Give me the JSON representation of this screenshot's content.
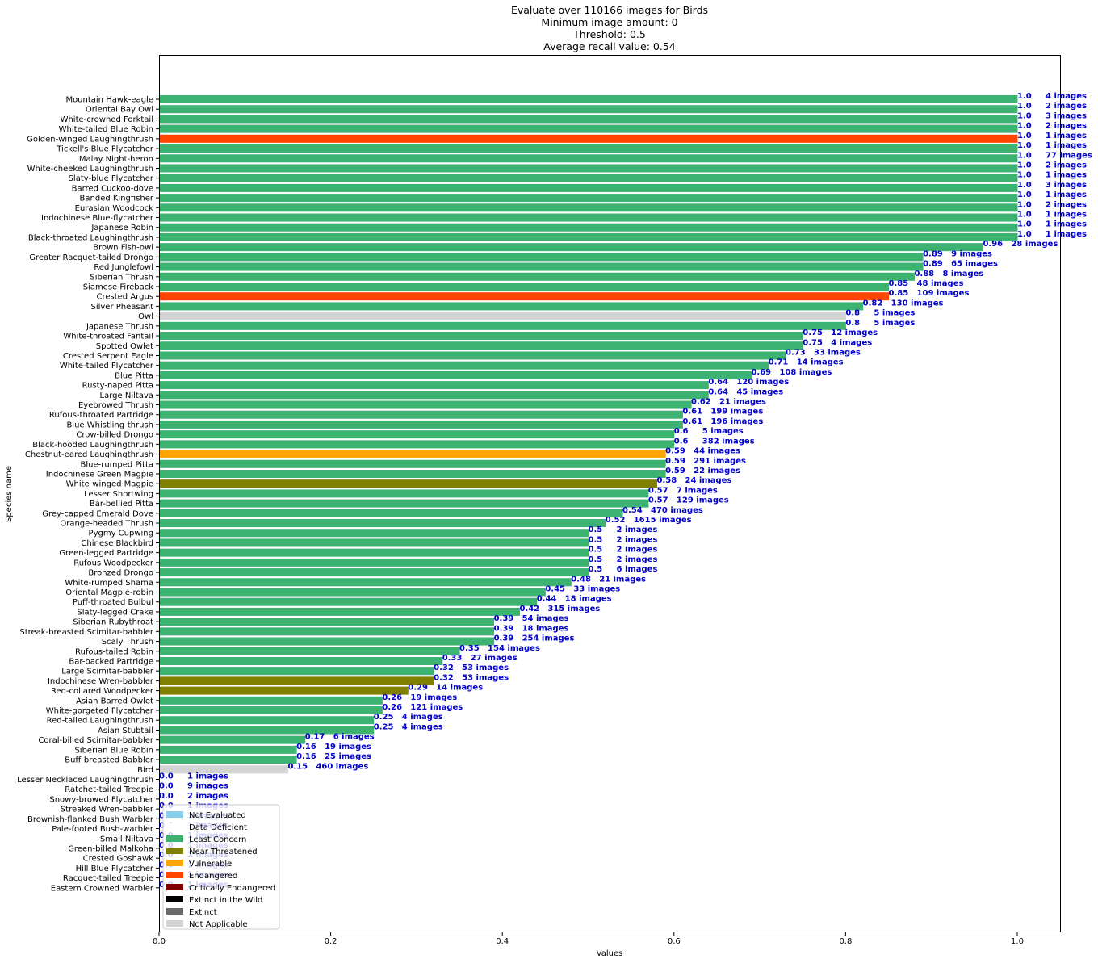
{
  "chart_data": {
    "type": "bar",
    "orientation": "horizontal",
    "title_lines": [
      "Evaluate over 110166 images for Birds",
      "Minimum image amount: 0",
      "Threshold:  0.5",
      "Average recall value: 0.54"
    ],
    "xlabel": "Values",
    "ylabel": "Species name",
    "xlim": [
      0,
      1.05
    ],
    "xticks": [
      "0.0",
      "0.2",
      "0.4",
      "0.6",
      "0.8",
      "1.0"
    ],
    "grid": false,
    "legend_position": "lower-left",
    "status_colors": {
      "Not Evaluated": "#87ceeb",
      "Data Deficient": "#ffffff",
      "Least Concern": "#3cb371",
      "Near Threatened": "#808000",
      "Vulnerable": "#ffa500",
      "Endangered": "#ff4500",
      "Critically Endangered": "#800000",
      "Extinct in the Wild": "#000000",
      "Extinct": "#696969",
      "Not Applicable": "#d3d3d3"
    },
    "legend": [
      "Not Evaluated",
      "Data Deficient",
      "Least Concern",
      "Near Threatened",
      "Vulnerable",
      "Endangered",
      "Critically Endangered",
      "Extinct in the Wild",
      "Extinct",
      "Not Applicable"
    ],
    "bars": [
      {
        "name": "Mountain Hawk-eagle",
        "value": 1.0,
        "label": "1.0",
        "images": "4 images",
        "status": "Least Concern"
      },
      {
        "name": "Oriental Bay Owl",
        "value": 1.0,
        "label": "1.0",
        "images": "2 images",
        "status": "Least Concern"
      },
      {
        "name": "White-crowned Forktail",
        "value": 1.0,
        "label": "1.0",
        "images": "3 images",
        "status": "Least Concern"
      },
      {
        "name": "White-tailed Blue Robin",
        "value": 1.0,
        "label": "1.0",
        "images": "2 images",
        "status": "Least Concern"
      },
      {
        "name": "Golden-winged Laughingthrush",
        "value": 1.0,
        "label": "1.0",
        "images": "1 images",
        "status": "Endangered"
      },
      {
        "name": "Tickell's Blue Flycatcher",
        "value": 1.0,
        "label": "1.0",
        "images": "1 images",
        "status": "Least Concern"
      },
      {
        "name": "Malay Night-heron",
        "value": 1.0,
        "label": "1.0",
        "images": "77 images",
        "status": "Least Concern"
      },
      {
        "name": "White-cheeked Laughingthrush",
        "value": 1.0,
        "label": "1.0",
        "images": "2 images",
        "status": "Least Concern"
      },
      {
        "name": "Slaty-blue Flycatcher",
        "value": 1.0,
        "label": "1.0",
        "images": "1 images",
        "status": "Least Concern"
      },
      {
        "name": "Barred Cuckoo-dove",
        "value": 1.0,
        "label": "1.0",
        "images": "3 images",
        "status": "Least Concern"
      },
      {
        "name": "Banded Kingfisher",
        "value": 1.0,
        "label": "1.0",
        "images": "1 images",
        "status": "Least Concern"
      },
      {
        "name": "Eurasian Woodcock",
        "value": 1.0,
        "label": "1.0",
        "images": "2 images",
        "status": "Least Concern"
      },
      {
        "name": "Indochinese Blue-flycatcher",
        "value": 1.0,
        "label": "1.0",
        "images": "1 images",
        "status": "Least Concern"
      },
      {
        "name": "Japanese Robin",
        "value": 1.0,
        "label": "1.0",
        "images": "1 images",
        "status": "Least Concern"
      },
      {
        "name": "Black-throated Laughingthrush",
        "value": 1.0,
        "label": "1.0",
        "images": "1 images",
        "status": "Least Concern"
      },
      {
        "name": "Brown Fish-owl",
        "value": 0.96,
        "label": "0.96",
        "images": "28 images",
        "status": "Least Concern"
      },
      {
        "name": "Greater Racquet-tailed Drongo",
        "value": 0.89,
        "label": "0.89",
        "images": "9 images",
        "status": "Least Concern"
      },
      {
        "name": "Red Junglefowl",
        "value": 0.89,
        "label": "0.89",
        "images": "65 images",
        "status": "Least Concern"
      },
      {
        "name": "Siberian Thrush",
        "value": 0.88,
        "label": "0.88",
        "images": "8 images",
        "status": "Least Concern"
      },
      {
        "name": "Siamese Fireback",
        "value": 0.85,
        "label": "0.85",
        "images": "48 images",
        "status": "Least Concern"
      },
      {
        "name": "Crested Argus",
        "value": 0.85,
        "label": "0.85",
        "images": "109 images",
        "status": "Endangered"
      },
      {
        "name": "Silver Pheasant",
        "value": 0.82,
        "label": "0.82",
        "images": "130 images",
        "status": "Least Concern"
      },
      {
        "name": "Owl",
        "value": 0.8,
        "label": "0.8",
        "images": "5 images",
        "status": "Not Applicable"
      },
      {
        "name": "Japanese Thrush",
        "value": 0.8,
        "label": "0.8",
        "images": "5 images",
        "status": "Least Concern"
      },
      {
        "name": "White-throated Fantail",
        "value": 0.75,
        "label": "0.75",
        "images": "12 images",
        "status": "Least Concern"
      },
      {
        "name": "Spotted Owlet",
        "value": 0.75,
        "label": "0.75",
        "images": "4 images",
        "status": "Least Concern"
      },
      {
        "name": "Crested Serpent Eagle",
        "value": 0.73,
        "label": "0.73",
        "images": "33 images",
        "status": "Least Concern"
      },
      {
        "name": "White-tailed Flycatcher",
        "value": 0.71,
        "label": "0.71",
        "images": "14 images",
        "status": "Least Concern"
      },
      {
        "name": "Blue Pitta",
        "value": 0.69,
        "label": "0.69",
        "images": "108 images",
        "status": "Least Concern"
      },
      {
        "name": "Rusty-naped Pitta",
        "value": 0.64,
        "label": "0.64",
        "images": "120 images",
        "status": "Least Concern"
      },
      {
        "name": "Large Niltava",
        "value": 0.64,
        "label": "0.64",
        "images": "45 images",
        "status": "Least Concern"
      },
      {
        "name": "Eyebrowed Thrush",
        "value": 0.62,
        "label": "0.62",
        "images": "21 images",
        "status": "Least Concern"
      },
      {
        "name": "Rufous-throated Partridge",
        "value": 0.61,
        "label": "0.61",
        "images": "199 images",
        "status": "Least Concern"
      },
      {
        "name": "Blue Whistling-thrush",
        "value": 0.61,
        "label": "0.61",
        "images": "196 images",
        "status": "Least Concern"
      },
      {
        "name": "Crow-billed Drongo",
        "value": 0.6,
        "label": "0.6",
        "images": "5 images",
        "status": "Least Concern"
      },
      {
        "name": "Black-hooded Laughingthrush",
        "value": 0.6,
        "label": "0.6",
        "images": "382 images",
        "status": "Least Concern"
      },
      {
        "name": "Chestnut-eared Laughingthrush",
        "value": 0.59,
        "label": "0.59",
        "images": "44 images",
        "status": "Vulnerable"
      },
      {
        "name": "Blue-rumped Pitta",
        "value": 0.59,
        "label": "0.59",
        "images": "291 images",
        "status": "Least Concern"
      },
      {
        "name": "Indochinese Green Magpie",
        "value": 0.59,
        "label": "0.59",
        "images": "22 images",
        "status": "Least Concern"
      },
      {
        "name": "White-winged Magpie",
        "value": 0.58,
        "label": "0.58",
        "images": "24 images",
        "status": "Near Threatened"
      },
      {
        "name": "Lesser Shortwing",
        "value": 0.57,
        "label": "0.57",
        "images": "7 images",
        "status": "Least Concern"
      },
      {
        "name": "Bar-bellied Pitta",
        "value": 0.57,
        "label": "0.57",
        "images": "129 images",
        "status": "Least Concern"
      },
      {
        "name": "Grey-capped Emerald Dove",
        "value": 0.54,
        "label": "0.54",
        "images": "470 images",
        "status": "Least Concern"
      },
      {
        "name": "Orange-headed Thrush",
        "value": 0.52,
        "label": "0.52",
        "images": "1615 images",
        "status": "Least Concern"
      },
      {
        "name": "Pygmy Cupwing",
        "value": 0.5,
        "label": "0.5",
        "images": "2 images",
        "status": "Least Concern"
      },
      {
        "name": "Chinese Blackbird",
        "value": 0.5,
        "label": "0.5",
        "images": "2 images",
        "status": "Least Concern"
      },
      {
        "name": "Green-legged Partridge",
        "value": 0.5,
        "label": "0.5",
        "images": "2 images",
        "status": "Least Concern"
      },
      {
        "name": "Rufous Woodpecker",
        "value": 0.5,
        "label": "0.5",
        "images": "2 images",
        "status": "Least Concern"
      },
      {
        "name": "Bronzed Drongo",
        "value": 0.5,
        "label": "0.5",
        "images": "6 images",
        "status": "Least Concern"
      },
      {
        "name": "White-rumped Shama",
        "value": 0.48,
        "label": "0.48",
        "images": "21 images",
        "status": "Least Concern"
      },
      {
        "name": "Oriental Magpie-robin",
        "value": 0.45,
        "label": "0.45",
        "images": "33 images",
        "status": "Least Concern"
      },
      {
        "name": "Puff-throated Bulbul",
        "value": 0.44,
        "label": "0.44",
        "images": "18 images",
        "status": "Least Concern"
      },
      {
        "name": "Slaty-legged Crake",
        "value": 0.42,
        "label": "0.42",
        "images": "315 images",
        "status": "Least Concern"
      },
      {
        "name": "Siberian Rubythroat",
        "value": 0.39,
        "label": "0.39",
        "images": "54 images",
        "status": "Least Concern"
      },
      {
        "name": "Streak-breasted Scimitar-babbler",
        "value": 0.39,
        "label": "0.39",
        "images": "18 images",
        "status": "Least Concern"
      },
      {
        "name": "Scaly Thrush",
        "value": 0.39,
        "label": "0.39",
        "images": "254 images",
        "status": "Least Concern"
      },
      {
        "name": "Rufous-tailed Robin",
        "value": 0.35,
        "label": "0.35",
        "images": "154 images",
        "status": "Least Concern"
      },
      {
        "name": "Bar-backed Partridge",
        "value": 0.33,
        "label": "0.33",
        "images": "27 images",
        "status": "Least Concern"
      },
      {
        "name": "Large Scimitar-babbler",
        "value": 0.32,
        "label": "0.32",
        "images": "53 images",
        "status": "Least Concern"
      },
      {
        "name": "Indochinese Wren-babbler",
        "value": 0.32,
        "label": "0.32",
        "images": "53 images",
        "status": "Near Threatened"
      },
      {
        "name": "Red-collared Woodpecker",
        "value": 0.29,
        "label": "0.29",
        "images": "14 images",
        "status": "Near Threatened"
      },
      {
        "name": "Asian Barred Owlet",
        "value": 0.26,
        "label": "0.26",
        "images": "19 images",
        "status": "Least Concern"
      },
      {
        "name": "White-gorgeted Flycatcher",
        "value": 0.26,
        "label": "0.26",
        "images": "121 images",
        "status": "Least Concern"
      },
      {
        "name": "Red-tailed Laughingthrush",
        "value": 0.25,
        "label": "0.25",
        "images": "4 images",
        "status": "Least Concern"
      },
      {
        "name": "Asian Stubtail",
        "value": 0.25,
        "label": "0.25",
        "images": "4 images",
        "status": "Least Concern"
      },
      {
        "name": "Coral-billed Scimitar-babbler",
        "value": 0.17,
        "label": "0.17",
        "images": "6 images",
        "status": "Least Concern"
      },
      {
        "name": "Siberian Blue Robin",
        "value": 0.16,
        "label": "0.16",
        "images": "19 images",
        "status": "Least Concern"
      },
      {
        "name": "Buff-breasted Babbler",
        "value": 0.16,
        "label": "0.16",
        "images": "25 images",
        "status": "Least Concern"
      },
      {
        "name": "Bird",
        "value": 0.15,
        "label": "0.15",
        "images": "460 images",
        "status": "Not Applicable"
      },
      {
        "name": "Lesser Necklaced Laughingthrush",
        "value": 0.0,
        "label": "0.0",
        "images": "1 images",
        "status": "Least Concern"
      },
      {
        "name": "Ratchet-tailed Treepie",
        "value": 0.0,
        "label": "0.0",
        "images": "9 images",
        "status": "Least Concern"
      },
      {
        "name": "Snowy-browed Flycatcher",
        "value": 0.0,
        "label": "0.0",
        "images": "2 images",
        "status": "Least Concern"
      },
      {
        "name": "Streaked Wren-babbler",
        "value": 0.0,
        "label": "0.0",
        "images": "1 images",
        "status": "Least Concern"
      },
      {
        "name": "Brownish-flanked Bush Warbler",
        "value": 0.0,
        "label": "0.0",
        "images": "1 images",
        "status": "Least Concern"
      },
      {
        "name": "Pale-footed Bush-warbler",
        "value": 0.0,
        "label": "0.0",
        "images": "1 images",
        "status": "Least Concern"
      },
      {
        "name": "Small Niltava",
        "value": 0.0,
        "label": "0.0",
        "images": "1 images",
        "status": "Least Concern"
      },
      {
        "name": "Green-billed Malkoha",
        "value": 0.0,
        "label": "0.0",
        "images": "1 images",
        "status": "Least Concern"
      },
      {
        "name": "Crested Goshawk",
        "value": 0.0,
        "label": "0.0",
        "images": "1 images",
        "status": "Least Concern"
      },
      {
        "name": "Hill Blue Flycatcher",
        "value": 0.0,
        "label": "0.0",
        "images": "1 images",
        "status": "Least Concern"
      },
      {
        "name": "Racquet-tailed Treepie",
        "value": 0.0,
        "label": "0.0",
        "images": "1 images",
        "status": "Least Concern"
      },
      {
        "name": "Eastern Crowned Warbler",
        "value": 0.0,
        "label": "0.0",
        "images": "1 images",
        "status": "Least Concern"
      }
    ]
  }
}
